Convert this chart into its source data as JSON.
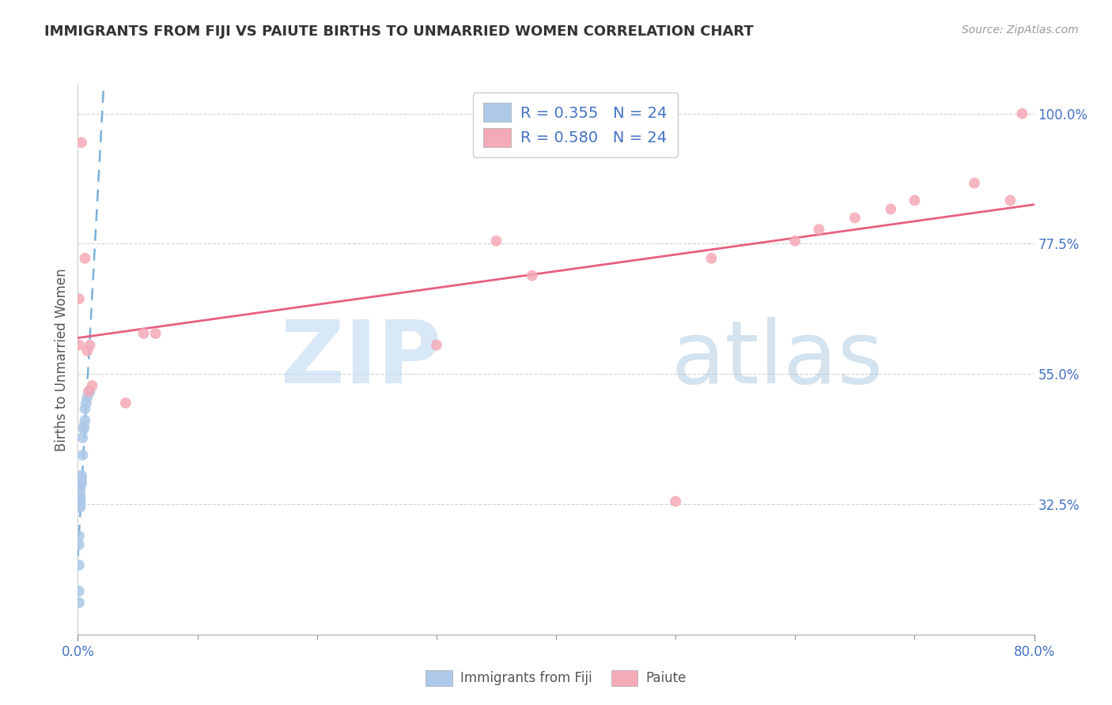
{
  "title": "IMMIGRANTS FROM FIJI VS PAIUTE BIRTHS TO UNMARRIED WOMEN CORRELATION CHART",
  "source": "Source: ZipAtlas.com",
  "ylabel": "Births to Unmarried Women",
  "xlim": [
    0.0,
    0.8
  ],
  "ylim": [
    0.1,
    1.05
  ],
  "yticks": [
    0.325,
    0.55,
    0.775,
    1.0
  ],
  "ytick_labels": [
    "32.5%",
    "55.0%",
    "77.5%",
    "100.0%"
  ],
  "xticks_major": [
    0.0,
    0.8
  ],
  "xtick_major_labels": [
    "0.0%",
    "80.0%"
  ],
  "xticks_minor": [
    0.1,
    0.2,
    0.3,
    0.4,
    0.5,
    0.6,
    0.7
  ],
  "legend_labels": [
    "Immigrants from Fiji",
    "Paiute"
  ],
  "legend_r": [
    "R = 0.355",
    "R = 0.580"
  ],
  "legend_n": [
    "N = 24",
    "N = 24"
  ],
  "blue_color": "#adc8e8",
  "pink_color": "#f4aab8",
  "blue_line_color": "#7ab0d8",
  "pink_line_color": "#e86080",
  "axis_label_color": "#4472c4",
  "tick_label_color": "#4472c4",
  "watermark_zip_color": "#c8dff5",
  "watermark_atlas_color": "#a8c8e0",
  "fiji_x": [
    0.001,
    0.001,
    0.001,
    0.001,
    0.001,
    0.002,
    0.002,
    0.002,
    0.002,
    0.002,
    0.002,
    0.003,
    0.003,
    0.003,
    0.003,
    0.004,
    0.004,
    0.005,
    0.005,
    0.006,
    0.006,
    0.007,
    0.008,
    0.01
  ],
  "fiji_y": [
    0.155,
    0.175,
    0.22,
    0.255,
    0.27,
    0.32,
    0.325,
    0.33,
    0.335,
    0.34,
    0.35,
    0.36,
    0.365,
    0.37,
    0.375,
    0.41,
    0.44,
    0.455,
    0.46,
    0.47,
    0.49,
    0.5,
    0.51,
    0.52
  ],
  "paiute_x": [
    0.001,
    0.001,
    0.003,
    0.006,
    0.008,
    0.009,
    0.01,
    0.012,
    0.04,
    0.055,
    0.065,
    0.3,
    0.35,
    0.38,
    0.5,
    0.53,
    0.6,
    0.62,
    0.65,
    0.68,
    0.7,
    0.75,
    0.78,
    0.79
  ],
  "paiute_y": [
    0.6,
    0.68,
    0.95,
    0.75,
    0.59,
    0.52,
    0.6,
    0.53,
    0.5,
    0.62,
    0.62,
    0.6,
    0.78,
    0.72,
    0.33,
    0.75,
    0.78,
    0.8,
    0.82,
    0.835,
    0.85,
    0.88,
    0.85,
    1.0
  ]
}
